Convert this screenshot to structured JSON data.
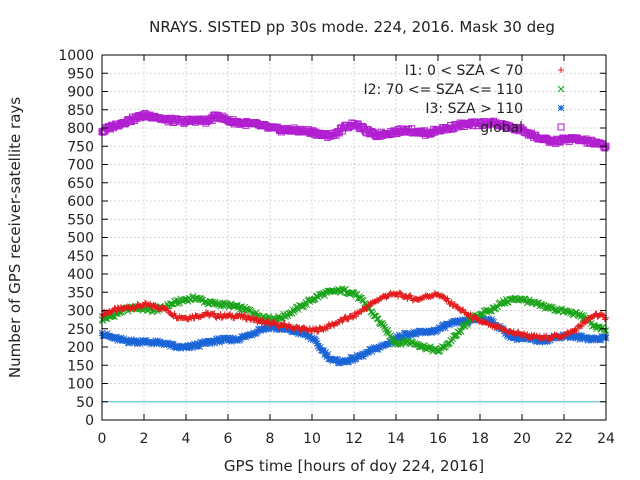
{
  "chart_data": {
    "type": "scatter",
    "title": "NRAYS. SISTED pp 30s mode. 224, 2016. Mask 30 deg",
    "xlabel": "GPS time [hours of doy 224, 2016]",
    "ylabel": "Number of GPS receiver-satellite rays",
    "xlim": [
      0,
      24
    ],
    "ylim": [
      0,
      1000
    ],
    "x_ticks": [
      0,
      2,
      4,
      6,
      8,
      10,
      12,
      14,
      16,
      18,
      20,
      22,
      24
    ],
    "x_tick_labels": [
      "0",
      "2",
      "4",
      "6",
      "8",
      "10",
      "12",
      "14",
      "16",
      "18",
      "20",
      "22",
      "24"
    ],
    "y_ticks": [
      0,
      50,
      100,
      150,
      200,
      250,
      300,
      350,
      400,
      450,
      500,
      550,
      600,
      650,
      700,
      750,
      800,
      850,
      900,
      950,
      1000
    ],
    "y_tick_labels": [
      "0",
      "50",
      "100",
      "150",
      "200",
      "250",
      "300",
      "350",
      "400",
      "450",
      "500",
      "550",
      "600",
      "650",
      "700",
      "750",
      "800",
      "850",
      "900",
      "950",
      "1000"
    ],
    "grid": true,
    "legend_position": "top-right",
    "threshold_line": {
      "y": 50,
      "color": "#40c0d0"
    },
    "series": [
      {
        "name": "I1: 0 < SZA < 70",
        "color": "#e41a1c",
        "marker": "plus",
        "points": [
          [
            0,
            290
          ],
          [
            0.5,
            300
          ],
          [
            1,
            305
          ],
          [
            1.5,
            310
          ],
          [
            2,
            315
          ],
          [
            2.5,
            312
          ],
          [
            3,
            305
          ],
          [
            3.5,
            285
          ],
          [
            4,
            280
          ],
          [
            4.5,
            285
          ],
          [
            5,
            290
          ],
          [
            5.5,
            285
          ],
          [
            6,
            285
          ],
          [
            6.5,
            285
          ],
          [
            7,
            280
          ],
          [
            7.5,
            270
          ],
          [
            8,
            265
          ],
          [
            8.5,
            260
          ],
          [
            9,
            255
          ],
          [
            9.5,
            250
          ],
          [
            10,
            245
          ],
          [
            10.5,
            250
          ],
          [
            11,
            262
          ],
          [
            11.5,
            275
          ],
          [
            12,
            285
          ],
          [
            12.5,
            305
          ],
          [
            13,
            325
          ],
          [
            13.5,
            340
          ],
          [
            14,
            345
          ],
          [
            14.5,
            338
          ],
          [
            15,
            330
          ],
          [
            15.5,
            340
          ],
          [
            16,
            345
          ],
          [
            16.5,
            325
          ],
          [
            17,
            305
          ],
          [
            17.5,
            285
          ],
          [
            18,
            270
          ],
          [
            18.5,
            260
          ],
          [
            19,
            250
          ],
          [
            19.5,
            240
          ],
          [
            20,
            235
          ],
          [
            20.5,
            228
          ],
          [
            21,
            225
          ],
          [
            21.5,
            228
          ],
          [
            22,
            232
          ],
          [
            22.5,
            245
          ],
          [
            23,
            268
          ],
          [
            23.5,
            290
          ],
          [
            24,
            280
          ]
        ]
      },
      {
        "name": "I2: 70 <= SZA <= 110",
        "color": "#1aa31a",
        "marker": "cross",
        "points": [
          [
            0,
            275
          ],
          [
            0.5,
            285
          ],
          [
            1,
            300
          ],
          [
            1.5,
            308
          ],
          [
            2,
            305
          ],
          [
            2.5,
            300
          ],
          [
            3,
            310
          ],
          [
            3.5,
            322
          ],
          [
            4,
            330
          ],
          [
            4.5,
            335
          ],
          [
            5,
            322
          ],
          [
            5.5,
            318
          ],
          [
            6,
            315
          ],
          [
            6.5,
            308
          ],
          [
            7,
            300
          ],
          [
            7.5,
            285
          ],
          [
            8,
            278
          ],
          [
            8.5,
            280
          ],
          [
            9,
            295
          ],
          [
            9.5,
            312
          ],
          [
            10,
            330
          ],
          [
            10.5,
            345
          ],
          [
            11,
            352
          ],
          [
            11.5,
            355
          ],
          [
            12,
            348
          ],
          [
            12.5,
            320
          ],
          [
            13,
            285
          ],
          [
            13.5,
            248
          ],
          [
            14,
            210
          ],
          [
            14.5,
            215
          ],
          [
            15,
            208
          ],
          [
            15.5,
            198
          ],
          [
            16,
            188
          ],
          [
            16.5,
            210
          ],
          [
            17,
            240
          ],
          [
            17.5,
            275
          ],
          [
            18,
            290
          ],
          [
            18.5,
            300
          ],
          [
            19,
            320
          ],
          [
            19.5,
            330
          ],
          [
            20,
            332
          ],
          [
            20.5,
            320
          ],
          [
            21,
            312
          ],
          [
            21.5,
            305
          ],
          [
            22,
            298
          ],
          [
            22.5,
            292
          ],
          [
            23,
            280
          ],
          [
            23.5,
            255
          ],
          [
            24,
            245
          ]
        ]
      },
      {
        "name": "I3: SZA > 110",
        "color": "#1a64d6",
        "marker": "star",
        "points": [
          [
            0,
            238
          ],
          [
            0.5,
            225
          ],
          [
            1,
            218
          ],
          [
            1.5,
            215
          ],
          [
            2,
            215
          ],
          [
            2.5,
            212
          ],
          [
            3,
            210
          ],
          [
            3.5,
            200
          ],
          [
            4,
            198
          ],
          [
            4.5,
            205
          ],
          [
            5,
            212
          ],
          [
            5.5,
            218
          ],
          [
            6,
            220
          ],
          [
            6.5,
            222
          ],
          [
            7,
            232
          ],
          [
            7.5,
            248
          ],
          [
            8,
            255
          ],
          [
            8.5,
            250
          ],
          [
            9,
            245
          ],
          [
            9.5,
            238
          ],
          [
            10,
            225
          ],
          [
            10.5,
            190
          ],
          [
            11,
            162
          ],
          [
            11.5,
            160
          ],
          [
            12,
            168
          ],
          [
            12.5,
            180
          ],
          [
            13,
            195
          ],
          [
            13.5,
            205
          ],
          [
            14,
            225
          ],
          [
            14.5,
            235
          ],
          [
            15,
            238
          ],
          [
            15.5,
            240
          ],
          [
            16,
            248
          ],
          [
            16.5,
            262
          ],
          [
            17,
            268
          ],
          [
            17.5,
            272
          ],
          [
            18,
            278
          ],
          [
            18.5,
            272
          ],
          [
            19,
            250
          ],
          [
            19.5,
            228
          ],
          [
            20,
            222
          ],
          [
            20.5,
            220
          ],
          [
            21,
            218
          ],
          [
            21.5,
            225
          ],
          [
            22,
            232
          ],
          [
            22.5,
            228
          ],
          [
            23,
            225
          ],
          [
            23.5,
            222
          ],
          [
            24,
            225
          ]
        ]
      },
      {
        "name": "global",
        "color": "#b01ed0",
        "marker": "square",
        "points": [
          [
            0,
            790
          ],
          [
            0.5,
            805
          ],
          [
            1,
            815
          ],
          [
            1.5,
            825
          ],
          [
            2,
            835
          ],
          [
            2.5,
            832
          ],
          [
            3,
            822
          ],
          [
            3.5,
            820
          ],
          [
            4,
            818
          ],
          [
            4.5,
            822
          ],
          [
            5,
            818
          ],
          [
            5.5,
            835
          ],
          [
            6,
            820
          ],
          [
            6.5,
            815
          ],
          [
            7,
            812
          ],
          [
            7.5,
            808
          ],
          [
            8,
            800
          ],
          [
            8.5,
            795
          ],
          [
            9,
            795
          ],
          [
            9.5,
            792
          ],
          [
            10,
            790
          ],
          [
            10.5,
            780
          ],
          [
            11,
            780
          ],
          [
            11.5,
            800
          ],
          [
            12,
            812
          ],
          [
            12.5,
            795
          ],
          [
            13,
            780
          ],
          [
            13.5,
            785
          ],
          [
            14,
            790
          ],
          [
            14.5,
            795
          ],
          [
            15,
            790
          ],
          [
            15.5,
            785
          ],
          [
            16,
            795
          ],
          [
            16.5,
            800
          ],
          [
            17,
            808
          ],
          [
            17.5,
            810
          ],
          [
            18,
            812
          ],
          [
            18.5,
            815
          ],
          [
            19,
            808
          ],
          [
            19.5,
            800
          ],
          [
            20,
            795
          ],
          [
            20.5,
            780
          ],
          [
            21,
            768
          ],
          [
            21.5,
            762
          ],
          [
            22,
            768
          ],
          [
            22.5,
            770
          ],
          [
            23,
            765
          ],
          [
            23.5,
            758
          ],
          [
            24,
            750
          ]
        ]
      }
    ]
  }
}
